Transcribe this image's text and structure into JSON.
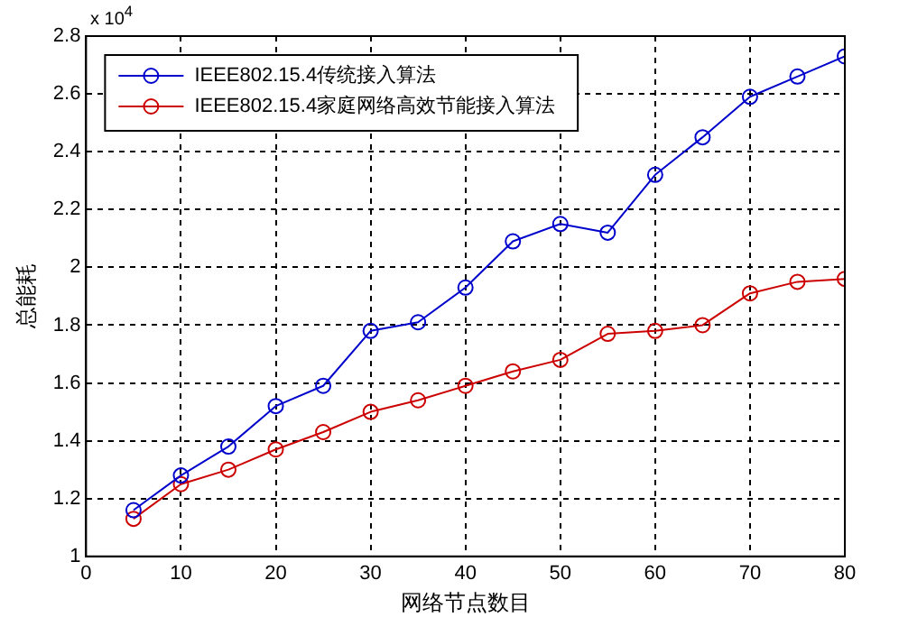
{
  "chart_data": {
    "type": "line",
    "xlabel": "网络节点数目",
    "ylabel": "总能耗",
    "annotations": [
      "x 10$^{4}$"
    ],
    "x": [
      5,
      10,
      15,
      20,
      25,
      30,
      35,
      40,
      45,
      50,
      55,
      60,
      65,
      70,
      75,
      80
    ],
    "series": [
      {
        "name": "IEEE802.15.4传统接入算法",
        "color": "#0000cc",
        "values": [
          1.16,
          1.28,
          1.38,
          1.52,
          1.59,
          1.78,
          1.81,
          1.93,
          2.09,
          2.15,
          2.12,
          2.32,
          2.45,
          2.59,
          2.66,
          2.73
        ]
      },
      {
        "name": "IEEE802.15.4家庭网络高效节能接入算法",
        "color": "#cc0000",
        "values": [
          1.13,
          1.25,
          1.3,
          1.37,
          1.43,
          1.5,
          1.54,
          1.59,
          1.64,
          1.68,
          1.77,
          1.78,
          1.8,
          1.91,
          1.95,
          1.96
        ]
      }
    ],
    "xlim": [
      0,
      80
    ],
    "xticks": [
      0,
      10,
      20,
      30,
      40,
      50,
      60,
      70,
      80
    ],
    "ylim": [
      1,
      2.8
    ],
    "yticks": [
      1,
      1.2,
      1.4,
      1.6,
      1.8,
      2,
      2.2,
      2.4,
      2.6,
      2.8
    ],
    "grid": true,
    "legend": "top left",
    "marker": "circle",
    "line_style": "solid"
  }
}
